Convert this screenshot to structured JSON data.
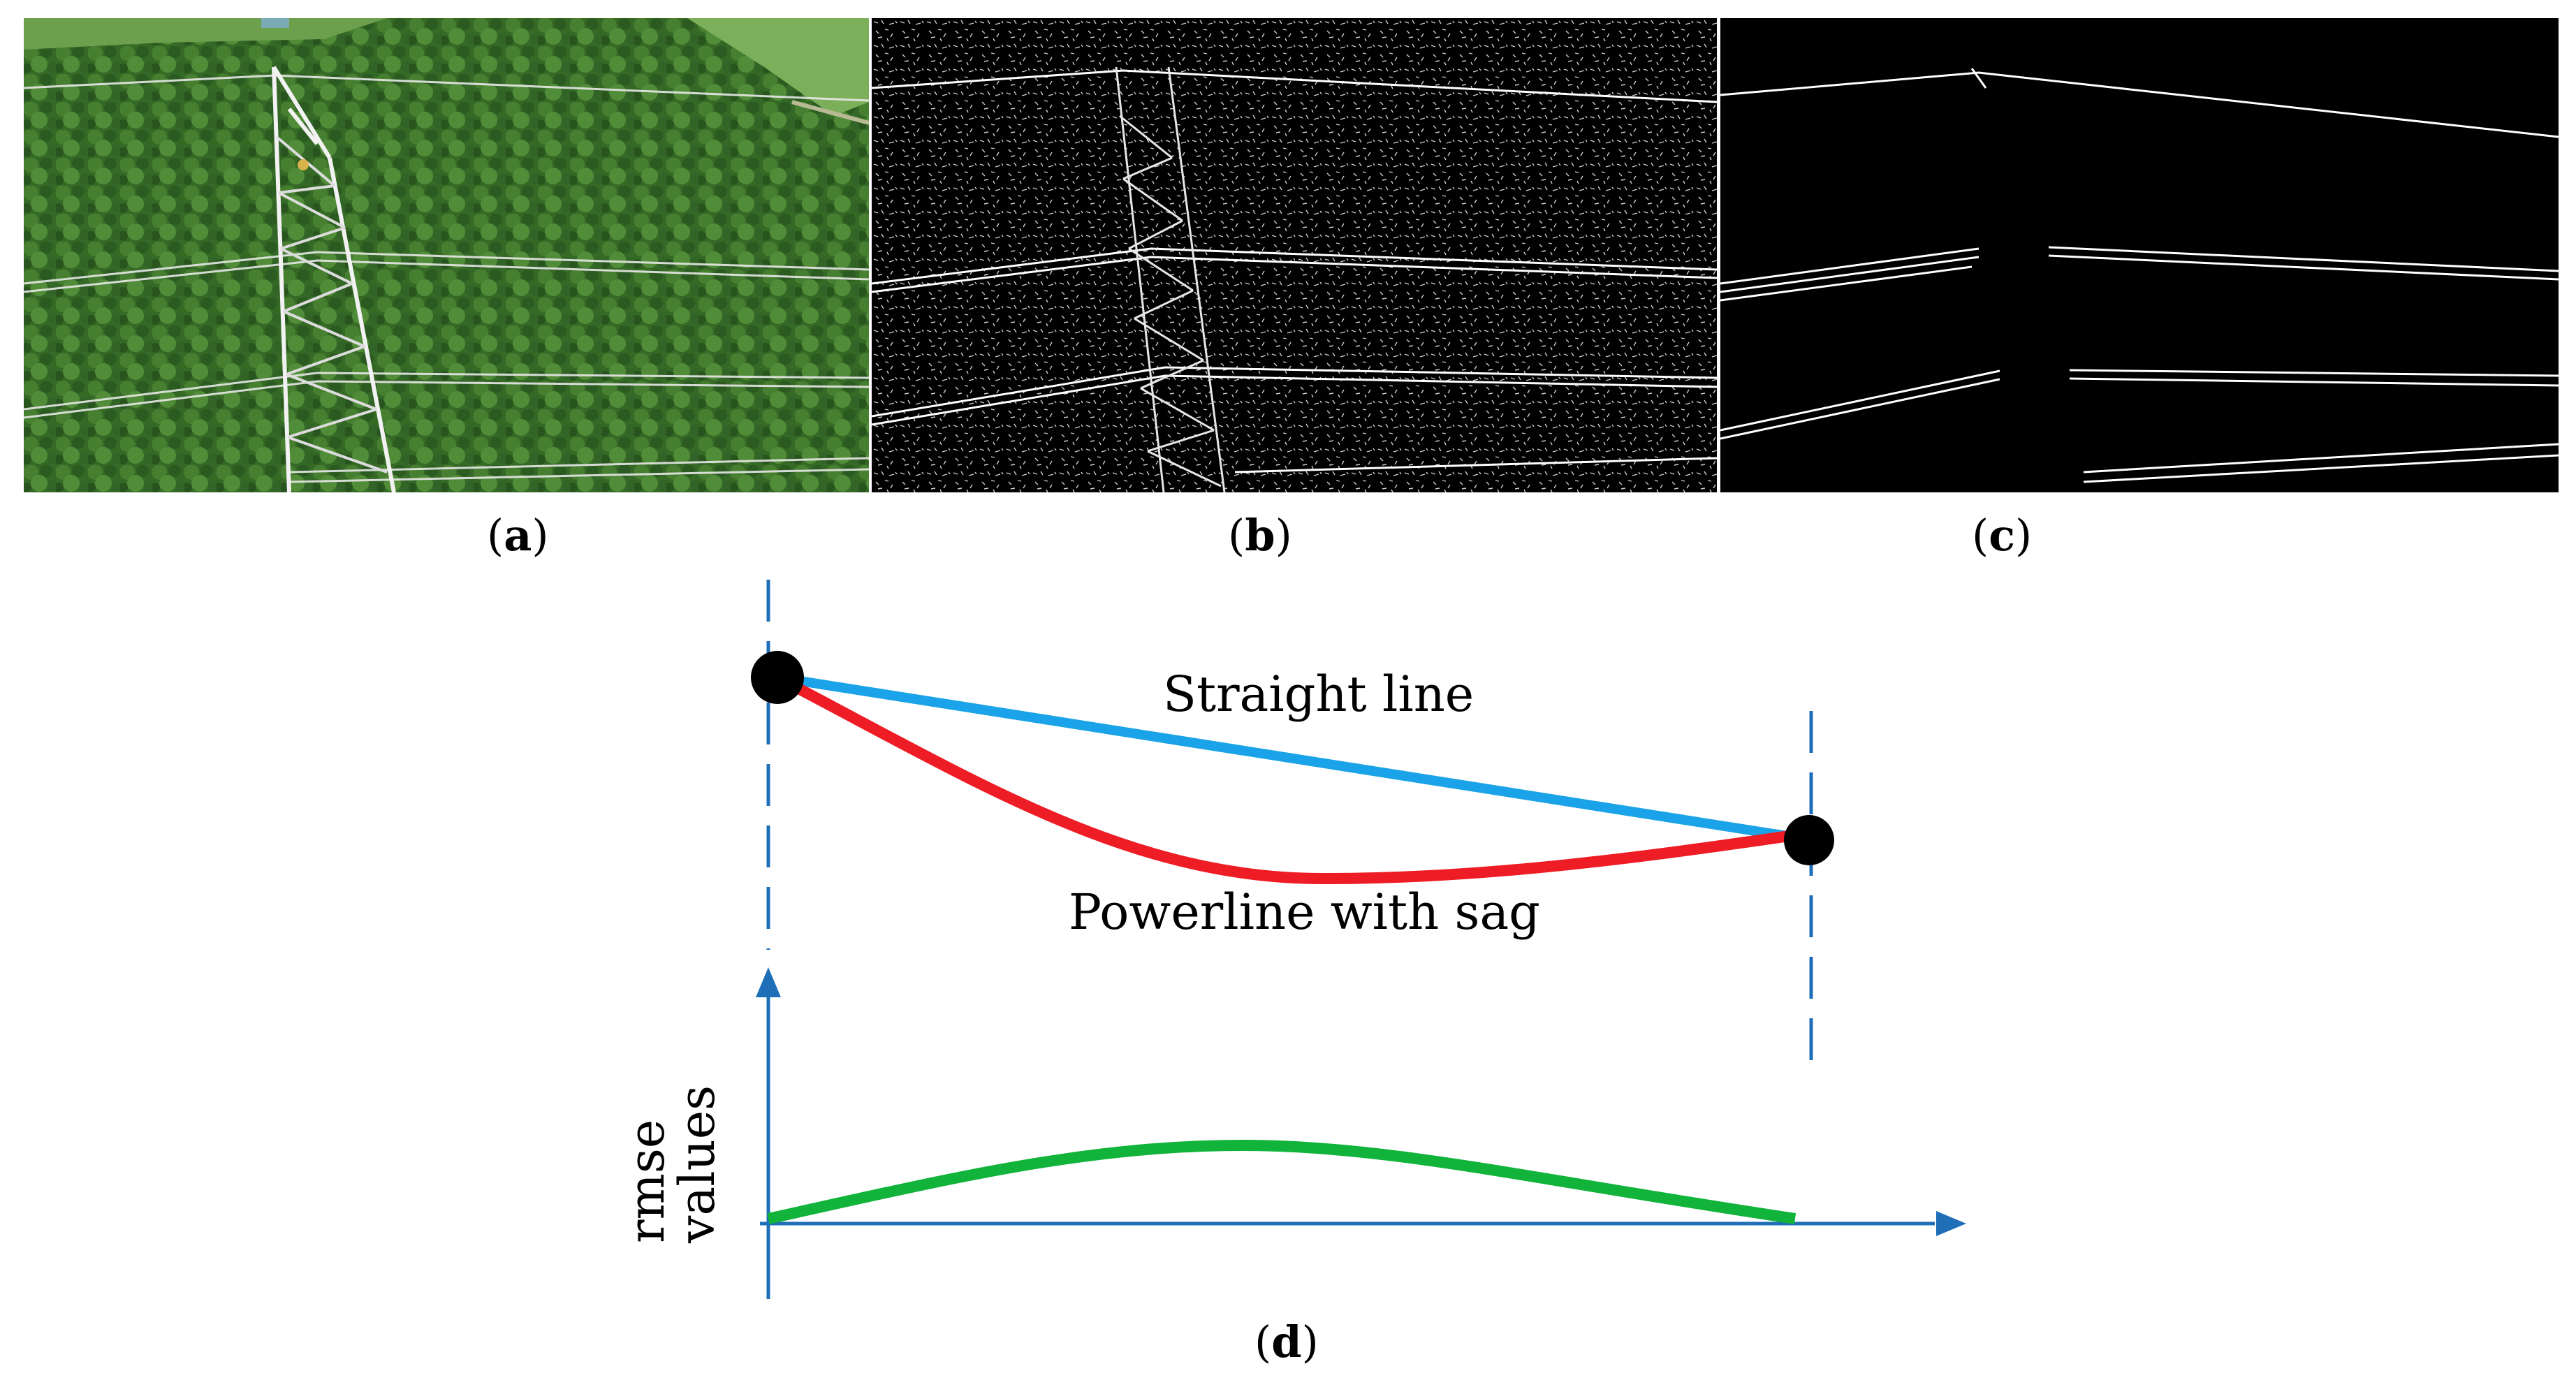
{
  "figure": {
    "panels": [
      {
        "id": "a",
        "caption_letter": "a",
        "content": "aerial-photo-tower-forest"
      },
      {
        "id": "b",
        "caption_letter": "b",
        "content": "edge-detection-result"
      },
      {
        "id": "c",
        "caption_letter": "c",
        "content": "extracted-powerlines"
      }
    ],
    "diagram": {
      "caption_letter": "d",
      "straight_line_label": "Straight line",
      "sag_line_label": "Powerline with sag",
      "y_axis_label_line1": "rmse",
      "y_axis_label_line2": "values"
    }
  },
  "colors": {
    "straight_line": "#1aa3e8",
    "sag_line": "#ee1c25",
    "rmse_curve": "#11b33b",
    "axis": "#1f6fb8",
    "endpoint": "#000000",
    "forest": "#3b7a2c"
  }
}
